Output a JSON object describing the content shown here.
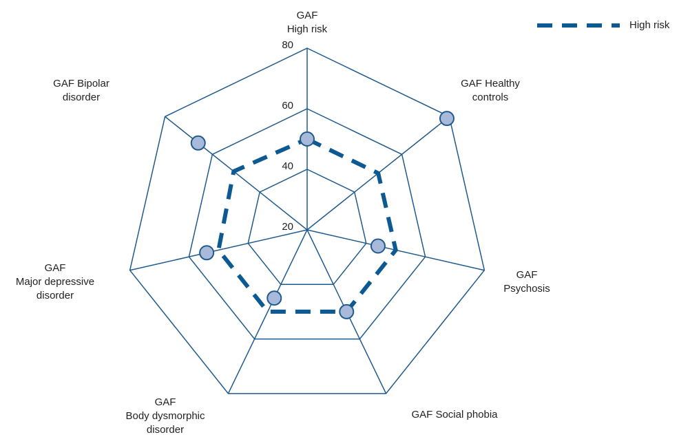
{
  "chart_data": {
    "type": "radar",
    "categories": [
      "GAF\nHigh risk",
      "GAF Healthy\ncontrols",
      "GAF\nPsychosis",
      "GAF Social phobia",
      "GAF\nBody dysmorphic\ndisorder",
      "GAF\nMajor depressive\ndisorder",
      "GAF Bipolar\ndisorder"
    ],
    "rlim": [
      20,
      80
    ],
    "rticks": [
      20,
      40,
      60,
      80
    ],
    "grid_color": "#1f5a8e",
    "legend": "top-right",
    "series": [
      {
        "name": "High risk",
        "color": "#0d5a93",
        "style": "dashed",
        "values": [
          50,
          50,
          50,
          50,
          50,
          50,
          51
        ]
      },
      {
        "color": "#1f5a8e",
        "fill": "#a9b9da",
        "style": "markers",
        "values": [
          50,
          79,
          44,
          50,
          45,
          54,
          66
        ]
      }
    ]
  }
}
